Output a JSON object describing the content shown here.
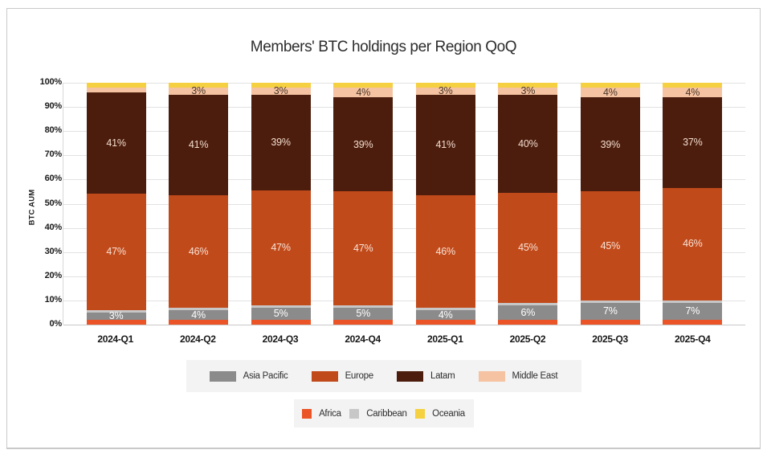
{
  "title": "Members' BTC holdings per Region QoQ",
  "y_axis": {
    "label": "BTC AUM",
    "ticks": [
      "100%",
      "90%",
      "80%",
      "70%",
      "60%",
      "50%",
      "40%",
      "30%",
      "20%",
      "10%",
      "0%"
    ]
  },
  "chart_data": {
    "type": "bar",
    "stacked": true,
    "normalized_percent": true,
    "title": "Members' BTC holdings per Region QoQ",
    "xlabel": "",
    "ylabel": "BTC AUM",
    "ylim": [
      0,
      100
    ],
    "grid": true,
    "legend_position": "bottom",
    "categories": [
      "2024-Q1",
      "2024-Q2",
      "2024-Q3",
      "2024-Q4",
      "2025-Q1",
      "2025-Q2",
      "2025-Q3",
      "2025-Q4"
    ],
    "series": [
      {
        "name": "Africa",
        "color": "#EA5426",
        "label_color": "",
        "values": [
          2,
          2,
          2,
          2,
          2,
          2,
          2,
          2
        ],
        "labels": [
          "",
          "",
          "",
          "",
          "",
          "",
          "",
          ""
        ]
      },
      {
        "name": "Asia Pacific",
        "color": "#8B8B8B",
        "label_color": "#ffffff",
        "values": [
          3,
          4,
          5,
          5,
          4,
          6,
          7,
          7
        ],
        "labels": [
          "3%",
          "4%",
          "5%",
          "5%",
          "4%",
          "6%",
          "7%",
          "7%"
        ]
      },
      {
        "name": "Caribbean",
        "color": "#C7C7C7",
        "label_color": "",
        "values": [
          1,
          1,
          1,
          1,
          1,
          1,
          1,
          1
        ],
        "labels": [
          "",
          "",
          "",
          "",
          "",
          "",
          "",
          ""
        ]
      },
      {
        "name": "Europe",
        "color": "#C14A1B",
        "label_color": "#F8E2D4",
        "values": [
          47,
          46,
          47,
          47,
          46,
          45,
          45,
          46
        ],
        "labels": [
          "47%",
          "46%",
          "47%",
          "47%",
          "46%",
          "45%",
          "45%",
          "46%"
        ]
      },
      {
        "name": "Latam",
        "color": "#4C1D0D",
        "label_color": "#F2DCCE",
        "values": [
          41,
          41,
          39,
          39,
          41,
          40,
          39,
          37
        ],
        "labels": [
          "41%",
          "41%",
          "39%",
          "39%",
          "41%",
          "40%",
          "39%",
          "37%"
        ]
      },
      {
        "name": "Middle East",
        "color": "#F5C3A2",
        "label_color": "#4A3527",
        "values": [
          2,
          3,
          3,
          4,
          3,
          3,
          4,
          4
        ],
        "labels": [
          "",
          "3%",
          "3%",
          "4%",
          "3%",
          "3%",
          "4%",
          "4%"
        ]
      },
      {
        "name": "Oceania",
        "color": "#F5D041",
        "label_color": "",
        "values": [
          2,
          2,
          2,
          2,
          2,
          2,
          2,
          2
        ],
        "labels": [
          "",
          "",
          "",
          "",
          "",
          "",
          "",
          ""
        ]
      }
    ]
  },
  "legend": {
    "rows": [
      [
        {
          "name": "Asia Pacific",
          "color": "#8B8B8B"
        },
        {
          "name": "Europe",
          "color": "#C14A1B"
        },
        {
          "name": "Latam",
          "color": "#4C1D0D"
        },
        {
          "name": "Middle East",
          "color": "#F5C3A2"
        }
      ],
      [
        {
          "name": "Africa",
          "color": "#EA5426"
        },
        {
          "name": "Caribbean",
          "color": "#C7C7C7"
        },
        {
          "name": "Oceania",
          "color": "#F5D041"
        }
      ]
    ]
  }
}
